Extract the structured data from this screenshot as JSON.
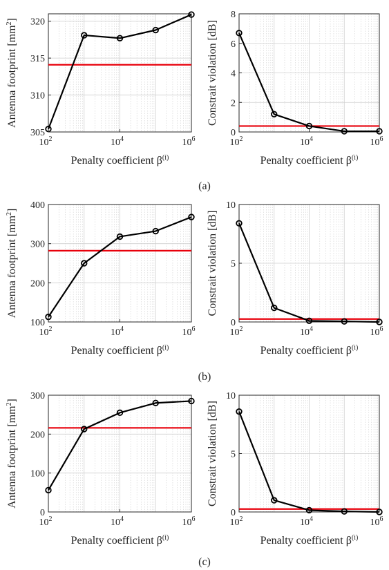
{
  "figure": {
    "panel_labels": [
      "(a)",
      "(b)",
      "(c)"
    ]
  },
  "colors": {
    "series": "#000000",
    "threshold": "#e8000b",
    "grid": "#cfcfcf",
    "axis": "#262626"
  },
  "chart_data": [
    {
      "id": "a-left",
      "panel": "(a)",
      "type": "line",
      "xscale": "log",
      "xlabel": "Penalty coefficient β(i)",
      "ylabel": "Antenna footprint [mm2]",
      "xlim": [
        100,
        1000000
      ],
      "ylim": [
        305,
        321
      ],
      "xticks": [
        100,
        10000,
        1000000
      ],
      "xtick_labels": [
        "10^2",
        "10^4",
        "10^6"
      ],
      "yticks": [
        305,
        310,
        315,
        320
      ],
      "ytick_labels": [
        "305",
        "310",
        "315",
        "320"
      ],
      "x": [
        100,
        1000,
        10000,
        100000,
        1000000
      ],
      "y": [
        305.4,
        318.1,
        317.7,
        318.8,
        320.9
      ],
      "reference_line": 314.1,
      "grid": true
    },
    {
      "id": "a-right",
      "panel": "(a)",
      "type": "line",
      "xscale": "log",
      "xlabel": "Penalty coefficient β(i)",
      "ylabel": "Constrait violation [dB]",
      "xlim": [
        100,
        1000000
      ],
      "ylim": [
        0,
        8
      ],
      "xticks": [
        100,
        10000,
        1000000
      ],
      "xtick_labels": [
        "10^2",
        "10^4",
        "10^6"
      ],
      "yticks": [
        0,
        2,
        4,
        6,
        8
      ],
      "ytick_labels": [
        "0",
        "2",
        "4",
        "6",
        "8"
      ],
      "x": [
        100,
        1000,
        10000,
        100000,
        1000000
      ],
      "y": [
        6.7,
        1.2,
        0.4,
        0.05,
        0.05
      ],
      "reference_line": 0.4,
      "grid": true
    },
    {
      "id": "b-left",
      "panel": "(b)",
      "type": "line",
      "xscale": "log",
      "xlabel": "Penalty coefficient β(i)",
      "ylabel": "Antenna footprint [mm2]",
      "xlim": [
        100,
        1000000
      ],
      "ylim": [
        100,
        400
      ],
      "xticks": [
        100,
        10000,
        1000000
      ],
      "xtick_labels": [
        "10^2",
        "10^4",
        "10^6"
      ],
      "yticks": [
        100,
        200,
        300,
        400
      ],
      "ytick_labels": [
        "100",
        "200",
        "300",
        "400"
      ],
      "x": [
        100,
        1000,
        10000,
        100000,
        1000000
      ],
      "y": [
        113,
        250,
        318,
        332,
        368
      ],
      "reference_line": 282,
      "grid": true
    },
    {
      "id": "b-right",
      "panel": "(b)",
      "type": "line",
      "xscale": "log",
      "xlabel": "Penalty coefficient β(i)",
      "ylabel": "Constrait violation [dB]",
      "xlim": [
        100,
        1000000
      ],
      "ylim": [
        0,
        10
      ],
      "xticks": [
        100,
        10000,
        1000000
      ],
      "xtick_labels": [
        "10^2",
        "10^4",
        "10^6"
      ],
      "yticks": [
        0,
        5,
        10
      ],
      "ytick_labels": [
        "0",
        "5",
        "10"
      ],
      "x": [
        100,
        1000,
        10000,
        100000,
        1000000
      ],
      "y": [
        8.4,
        1.2,
        0.1,
        0.05,
        0.0
      ],
      "reference_line": 0.25,
      "grid": true
    },
    {
      "id": "c-left",
      "panel": "(c)",
      "type": "line",
      "xscale": "log",
      "xlabel": "Penalty coefficient β(i)",
      "ylabel": "Antenna footprint [mm2]",
      "xlim": [
        100,
        1000000
      ],
      "ylim": [
        0,
        300
      ],
      "xticks": [
        100,
        10000,
        1000000
      ],
      "xtick_labels": [
        "10^2",
        "10^4",
        "10^6"
      ],
      "yticks": [
        0,
        100,
        200,
        300
      ],
      "ytick_labels": [
        "0",
        "100",
        "200",
        "300"
      ],
      "x": [
        100,
        1000,
        10000,
        100000,
        1000000
      ],
      "y": [
        56,
        213,
        255,
        280,
        285
      ],
      "reference_line": 216,
      "grid": true
    },
    {
      "id": "c-right",
      "panel": "(c)",
      "type": "line",
      "xscale": "log",
      "xlabel": "Penalty coefficient β(i)",
      "ylabel": "Constrait violation [dB]",
      "xlim": [
        100,
        1000000
      ],
      "ylim": [
        0,
        10
      ],
      "xticks": [
        100,
        10000,
        1000000
      ],
      "xtick_labels": [
        "10^2",
        "10^4",
        "10^6"
      ],
      "yticks": [
        0,
        5,
        10
      ],
      "ytick_labels": [
        "0",
        "5",
        "10"
      ],
      "x": [
        100,
        1000,
        10000,
        100000,
        1000000
      ],
      "y": [
        8.6,
        1.0,
        0.15,
        0.05,
        0.0
      ],
      "reference_line": 0.25,
      "grid": true
    }
  ]
}
